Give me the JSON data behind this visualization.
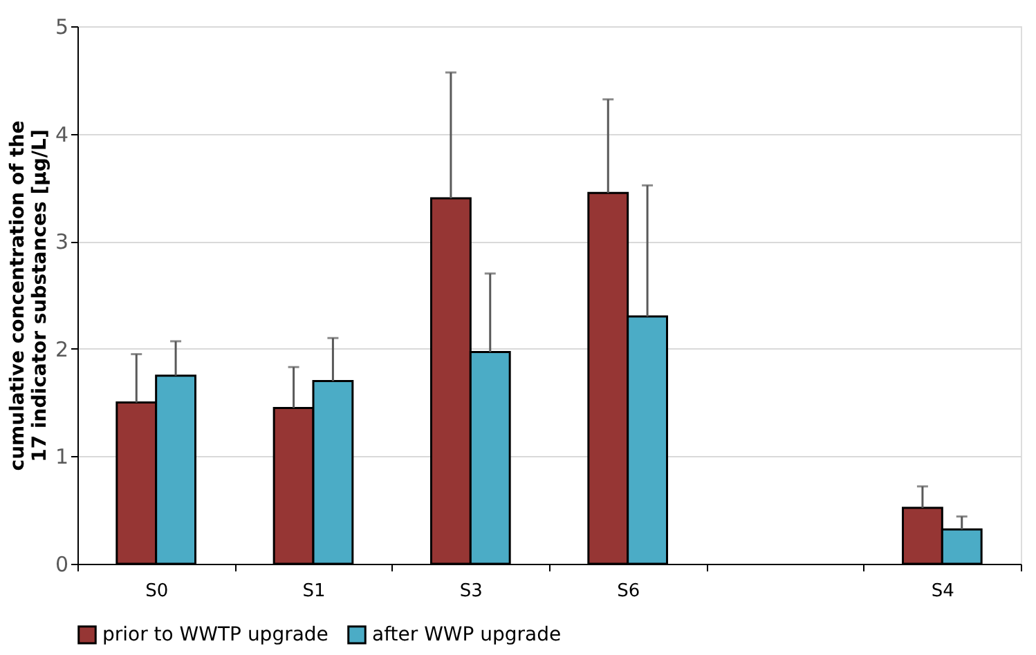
{
  "chart_data": {
    "type": "bar",
    "ylabel": "cumulative concentration of the 17 indicator substances [µg/L]",
    "categories": [
      "S0",
      "S1",
      "S3",
      "S6",
      null,
      "S4"
    ],
    "series": [
      {
        "name": "prior to WWTP upgrade",
        "color": "#963634",
        "values": [
          1.5,
          1.45,
          3.4,
          3.45,
          null,
          0.52
        ],
        "errors": [
          [
            1.5,
            1.95
          ],
          [
            1.45,
            1.83
          ],
          [
            3.4,
            4.57
          ],
          [
            3.45,
            4.32
          ],
          null,
          [
            0.52,
            0.72
          ]
        ]
      },
      {
        "name": "after WWP upgrade",
        "color": "#4bacc6",
        "values": [
          1.75,
          1.7,
          1.97,
          2.3,
          null,
          0.32
        ],
        "errors": [
          [
            1.75,
            2.07
          ],
          [
            1.7,
            2.1
          ],
          [
            1.97,
            2.7
          ],
          [
            2.3,
            3.52
          ],
          null,
          [
            0.32,
            0.44
          ]
        ]
      }
    ],
    "ylim": [
      0,
      5
    ],
    "yticks": [
      0,
      1,
      2,
      3,
      4,
      5
    ],
    "grid": "y",
    "legend": "bottom"
  }
}
